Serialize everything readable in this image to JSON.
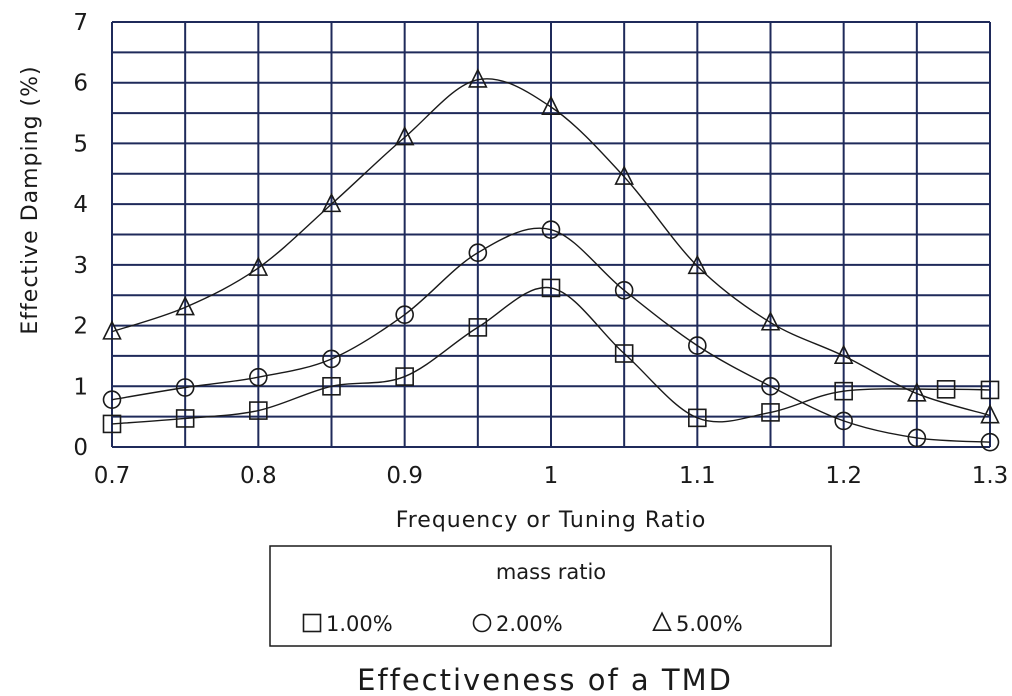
{
  "chart_data": {
    "type": "line",
    "title": "Effectiveness of a TMD",
    "xlabel": "Frequency or Tuning Ratio",
    "ylabel": "Effective Damping (%)",
    "xlim": [
      0.7,
      1.3
    ],
    "ylim": [
      0,
      7
    ],
    "x_ticks": [
      "0.7",
      "0.8",
      "0.9",
      "1",
      "1.1",
      "1.2",
      "1.3"
    ],
    "y_ticks": [
      "0",
      "1",
      "2",
      "3",
      "4",
      "5",
      "6",
      "7"
    ],
    "grid": true,
    "legend": {
      "title": "mass ratio",
      "position": "below",
      "entries": [
        "1.00%",
        "2.00%",
        "5.00%"
      ]
    },
    "series": [
      {
        "name": "1.00%",
        "marker": "square",
        "points": [
          [
            0.7,
            0.38
          ],
          [
            0.75,
            0.47
          ],
          [
            0.8,
            0.6
          ],
          [
            0.85,
            1.0
          ],
          [
            0.9,
            1.16
          ],
          [
            0.95,
            1.97
          ],
          [
            1.0,
            2.62
          ],
          [
            1.05,
            1.54
          ],
          [
            1.1,
            0.48
          ],
          [
            1.15,
            0.57
          ],
          [
            1.2,
            0.92
          ],
          [
            1.27,
            0.95
          ],
          [
            1.3,
            0.94
          ]
        ]
      },
      {
        "name": "2.00%",
        "marker": "circle",
        "points": [
          [
            0.7,
            0.78
          ],
          [
            0.75,
            0.98
          ],
          [
            0.8,
            1.15
          ],
          [
            0.85,
            1.45
          ],
          [
            0.9,
            2.18
          ],
          [
            0.95,
            3.2
          ],
          [
            1.0,
            3.58
          ],
          [
            1.05,
            2.58
          ],
          [
            1.1,
            1.67
          ],
          [
            1.15,
            1.0
          ],
          [
            1.2,
            0.43
          ],
          [
            1.25,
            0.15
          ],
          [
            1.3,
            0.08
          ]
        ]
      },
      {
        "name": "5.00%",
        "marker": "triangle",
        "points": [
          [
            0.7,
            1.9
          ],
          [
            0.75,
            2.3
          ],
          [
            0.8,
            2.95
          ],
          [
            0.85,
            4.0
          ],
          [
            0.9,
            5.1
          ],
          [
            0.95,
            6.05
          ],
          [
            1.0,
            5.6
          ],
          [
            1.05,
            4.45
          ],
          [
            1.1,
            2.98
          ],
          [
            1.15,
            2.05
          ],
          [
            1.2,
            1.5
          ],
          [
            1.25,
            0.88
          ],
          [
            1.3,
            0.52
          ]
        ]
      }
    ]
  }
}
